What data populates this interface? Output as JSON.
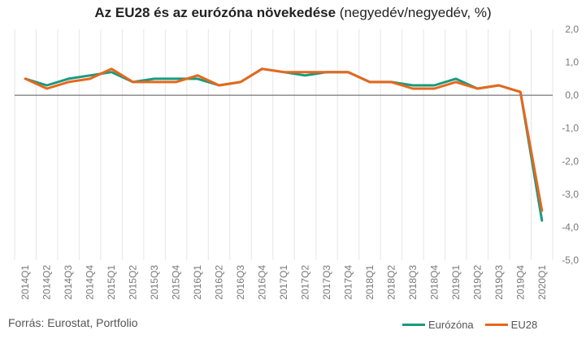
{
  "title_bold": "Az EU28 és az eurózóna növekedése",
  "title_rest": " (negyedév/negyedév, %)",
  "source": "Forrás: Eurostat, Portfolio",
  "chart_data": {
    "type": "line",
    "title": "Az EU28 és az eurózóna növekedése (negyedév/negyedév, %)",
    "categories": [
      "2014Q1",
      "2014Q2",
      "2014Q3",
      "2014Q4",
      "2015Q1",
      "2015Q2",
      "2015Q3",
      "2015Q4",
      "2016Q1",
      "2016Q2",
      "2016Q3",
      "2016Q4",
      "2017Q1",
      "2017Q2",
      "2017Q3",
      "2017Q4",
      "2018Q1",
      "2018Q2",
      "2018Q3",
      "2018Q4",
      "2019Q1",
      "2019Q2",
      "2019Q3",
      "2019Q4",
      "2020Q1"
    ],
    "y_ticks": [
      "2,0",
      "1,0",
      "0,0",
      "-1,0",
      "-2,0",
      "-3,0",
      "-4,0",
      "-5,0"
    ],
    "y_tick_values": [
      2,
      1,
      0,
      -1,
      -2,
      -3,
      -4,
      -5
    ],
    "ylim": [
      -5,
      2
    ],
    "y_axis_side": "right",
    "grid": "vertical",
    "legend_position": "bottom-right",
    "series": [
      {
        "name": "Eurózóna",
        "color": "#1a9a7f",
        "values": [
          0.5,
          0.3,
          0.5,
          0.6,
          0.7,
          0.4,
          0.5,
          0.5,
          0.5,
          0.3,
          0.4,
          0.8,
          0.7,
          0.6,
          0.7,
          0.7,
          0.4,
          0.4,
          0.3,
          0.3,
          0.5,
          0.2,
          0.3,
          0.1,
          -3.8
        ]
      },
      {
        "name": "EU28",
        "color": "#e8671d",
        "values": [
          0.5,
          0.2,
          0.4,
          0.5,
          0.8,
          0.4,
          0.4,
          0.4,
          0.6,
          0.3,
          0.4,
          0.8,
          0.7,
          0.7,
          0.7,
          0.7,
          0.4,
          0.4,
          0.2,
          0.2,
          0.4,
          0.2,
          0.3,
          0.1,
          -3.5
        ]
      }
    ]
  }
}
